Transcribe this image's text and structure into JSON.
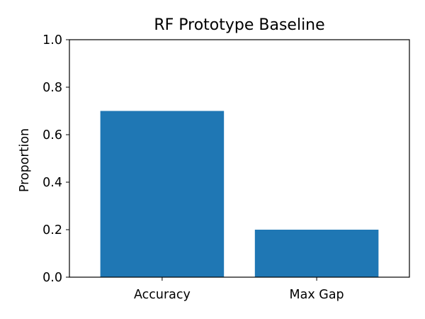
{
  "chart_data": {
    "type": "bar",
    "title": "RF Prototype Baseline",
    "xlabel": "",
    "ylabel": "Proportion",
    "categories": [
      "Accuracy",
      "Max Gap"
    ],
    "values": [
      0.7,
      0.2
    ],
    "ylim": [
      0,
      1.0
    ],
    "yticks": [
      "0.0",
      "0.2",
      "0.4",
      "0.6",
      "0.8",
      "1.0"
    ],
    "grid": false,
    "bar_color": "#1f77b4"
  }
}
